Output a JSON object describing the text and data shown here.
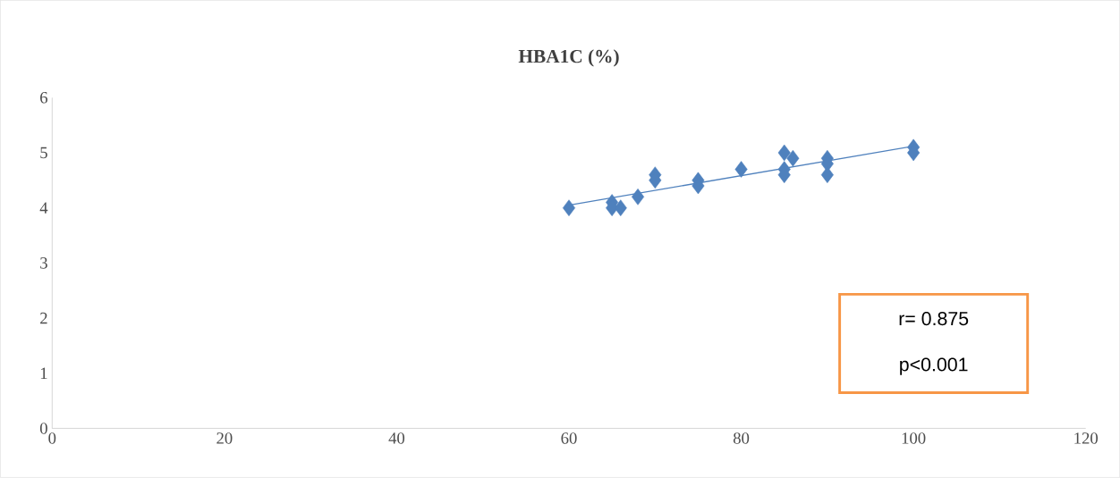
{
  "chart_data": {
    "type": "scatter",
    "title": "HBA1C (%)",
    "marker": "diamond",
    "grid": false,
    "xlim": [
      0,
      120
    ],
    "xticks": [
      0,
      20,
      40,
      60,
      80,
      100,
      120
    ],
    "ylim": [
      0,
      6
    ],
    "yticks": [
      0,
      1,
      2,
      3,
      4,
      5,
      6
    ],
    "annotations": [
      "r= 0.875",
      "p<0.001"
    ],
    "series": [
      {
        "color": "#4f81bd",
        "x": [
          60,
          65,
          65,
          66,
          68,
          70,
          70,
          75,
          75,
          80,
          85,
          86,
          85,
          85,
          90,
          90,
          90,
          100,
          100
        ],
        "values": [
          4,
          4.1,
          4,
          4,
          4.2,
          4.6,
          4.5,
          4.5,
          4.4,
          4.7,
          5,
          4.9,
          4.7,
          4.6,
          4.9,
          4.8,
          4.6,
          5.1,
          5
        ]
      },
      {
        "type": "line",
        "marker": "none",
        "color": "#4f81bd",
        "x": [
          60,
          100
        ],
        "values": [
          4.05,
          5.12
        ]
      }
    ]
  }
}
